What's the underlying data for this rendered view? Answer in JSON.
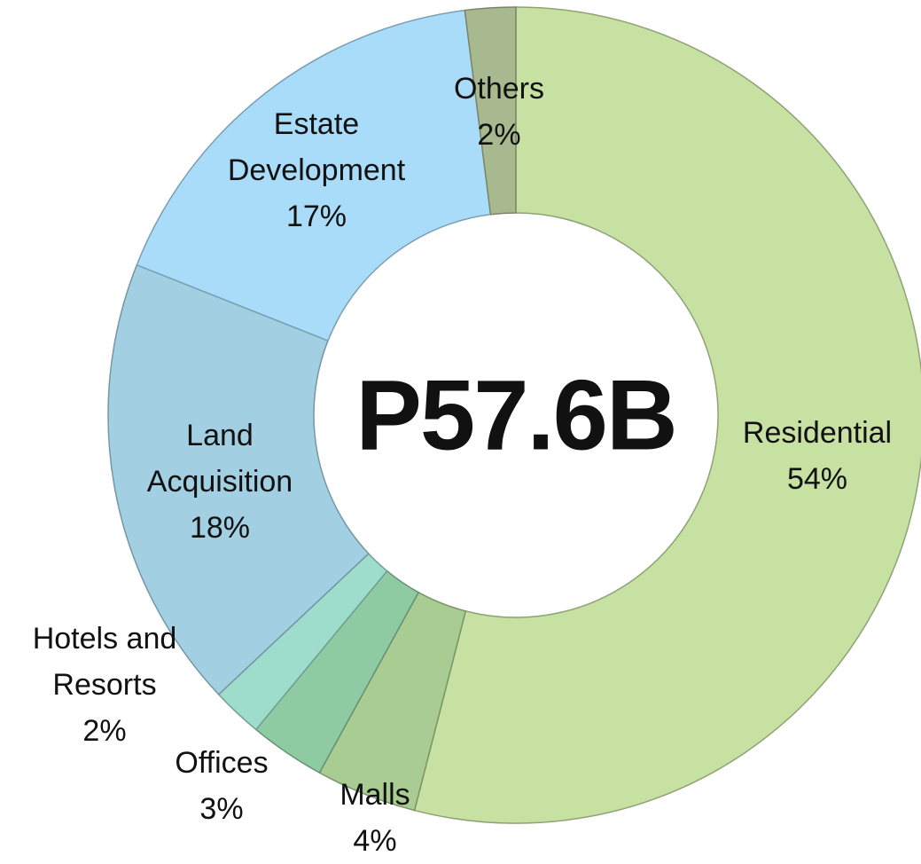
{
  "chart_data": {
    "type": "donut",
    "center_label": "P57.6B",
    "categories": [
      "Residential",
      "Malls",
      "Offices",
      "Hotels and Resorts",
      "Land Acquisition",
      "Estate Development",
      "Others"
    ],
    "values": [
      54,
      4,
      3,
      2,
      18,
      17,
      2
    ],
    "value_labels": [
      "54%",
      "4%",
      "3%",
      "2%",
      "18%",
      "17%",
      "2%"
    ],
    "colors": [
      "#c6e1a2",
      "#a9cc92",
      "#8ecaa2",
      "#9edccb",
      "#a2d0e2",
      "#a9dcf8",
      "#a9b98f"
    ]
  }
}
